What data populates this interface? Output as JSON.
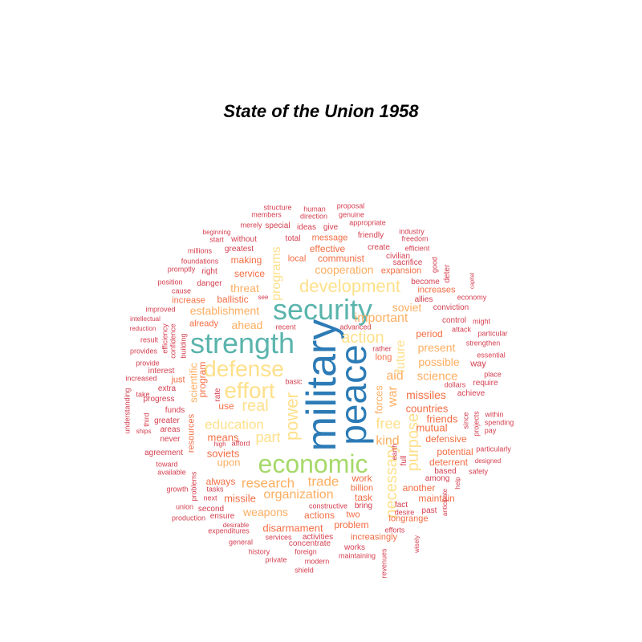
{
  "title": "State of the Union 1958",
  "palette": {
    "teal": "#5ab4ac",
    "blue": "#2c7bb6",
    "lightgreen": "#a6d96a",
    "yellow": "#fee08b",
    "sand": "#fdae61",
    "orange": "#f46d43",
    "red": "#d53e4f"
  },
  "words": [
    {
      "text": "military",
      "color": "blue"
    },
    {
      "text": "peace",
      "color": "blue"
    },
    {
      "text": "security",
      "color": "teal"
    },
    {
      "text": "strength",
      "color": "teal"
    },
    {
      "text": "economic",
      "color": "lightgreen"
    },
    {
      "text": "defense",
      "color": "yellow"
    },
    {
      "text": "effort",
      "color": "yellow"
    },
    {
      "text": "development",
      "color": "yellow"
    },
    {
      "text": "power",
      "color": "yellow"
    },
    {
      "text": "action",
      "color": "yellow"
    },
    {
      "text": "real",
      "color": "yellow"
    },
    {
      "text": "education",
      "color": "yellow"
    },
    {
      "text": "free",
      "color": "yellow"
    },
    {
      "text": "part",
      "color": "yellow"
    },
    {
      "text": "necessary",
      "color": "yellow"
    },
    {
      "text": "programs",
      "color": "yellow"
    },
    {
      "text": "future",
      "color": "yellow"
    },
    {
      "text": "purpose",
      "color": "yellow"
    },
    {
      "text": "war",
      "color": "sand"
    },
    {
      "text": "kind",
      "color": "sand"
    },
    {
      "text": "research",
      "color": "sand"
    },
    {
      "text": "trade",
      "color": "sand"
    },
    {
      "text": "organization",
      "color": "sand"
    },
    {
      "text": "important",
      "color": "sand"
    },
    {
      "text": "aid",
      "color": "sand"
    },
    {
      "text": "science",
      "color": "sand"
    },
    {
      "text": "establishment",
      "color": "sand"
    },
    {
      "text": "threat",
      "color": "sand"
    },
    {
      "text": "ahead",
      "color": "sand"
    },
    {
      "text": "present",
      "color": "sand"
    },
    {
      "text": "possible",
      "color": "sand"
    },
    {
      "text": "soviet",
      "color": "sand"
    },
    {
      "text": "cooperation",
      "color": "sand"
    },
    {
      "text": "weapons",
      "color": "sand"
    },
    {
      "text": "upon",
      "color": "sand"
    },
    {
      "text": "forces",
      "color": "sand"
    },
    {
      "text": "scientific",
      "color": "sand"
    },
    {
      "text": "missiles",
      "color": "orange"
    },
    {
      "text": "countries",
      "color": "orange"
    },
    {
      "text": "mutual",
      "color": "orange"
    },
    {
      "text": "friends",
      "color": "orange"
    },
    {
      "text": "defensive",
      "color": "orange"
    },
    {
      "text": "means",
      "color": "orange"
    },
    {
      "text": "soviets",
      "color": "orange"
    },
    {
      "text": "use",
      "color": "orange"
    },
    {
      "text": "program",
      "color": "orange"
    },
    {
      "text": "missile",
      "color": "orange"
    },
    {
      "text": "disarmament",
      "color": "orange"
    },
    {
      "text": "problem",
      "color": "orange"
    },
    {
      "text": "actions",
      "color": "orange"
    },
    {
      "text": "work",
      "color": "orange"
    },
    {
      "text": "task",
      "color": "orange"
    },
    {
      "text": "billion",
      "color": "orange"
    },
    {
      "text": "always",
      "color": "orange"
    },
    {
      "text": "another",
      "color": "orange"
    },
    {
      "text": "maintain",
      "color": "orange"
    },
    {
      "text": "deterrent",
      "color": "orange"
    },
    {
      "text": "potential",
      "color": "orange"
    },
    {
      "text": "period",
      "color": "orange"
    },
    {
      "text": "ballistic",
      "color": "orange"
    },
    {
      "text": "service",
      "color": "orange"
    },
    {
      "text": "making",
      "color": "orange"
    },
    {
      "text": "communist",
      "color": "orange"
    },
    {
      "text": "effective",
      "color": "orange"
    },
    {
      "text": "local",
      "color": "orange"
    },
    {
      "text": "message",
      "color": "orange"
    },
    {
      "text": "expansion",
      "color": "orange"
    },
    {
      "text": "increases",
      "color": "orange"
    },
    {
      "text": "already",
      "color": "orange"
    },
    {
      "text": "increase",
      "color": "orange"
    },
    {
      "text": "resources",
      "color": "orange"
    },
    {
      "text": "long",
      "color": "orange"
    },
    {
      "text": "two",
      "color": "orange"
    },
    {
      "text": "longrange",
      "color": "orange"
    },
    {
      "text": "increasingly",
      "color": "orange"
    },
    {
      "text": "just",
      "color": "orange"
    },
    {
      "text": "interest",
      "color": "red"
    },
    {
      "text": "extra",
      "color": "red"
    },
    {
      "text": "progress",
      "color": "red"
    },
    {
      "text": "funds",
      "color": "red"
    },
    {
      "text": "greater",
      "color": "red"
    },
    {
      "text": "never",
      "color": "red"
    },
    {
      "text": "second",
      "color": "red"
    },
    {
      "text": "next",
      "color": "red"
    },
    {
      "text": "ensure",
      "color": "red"
    },
    {
      "text": "structure",
      "color": "red"
    },
    {
      "text": "human",
      "color": "red"
    },
    {
      "text": "proposal",
      "color": "red"
    },
    {
      "text": "members",
      "color": "red"
    },
    {
      "text": "direction",
      "color": "red"
    },
    {
      "text": "genuine",
      "color": "red"
    },
    {
      "text": "merely",
      "color": "red"
    },
    {
      "text": "special",
      "color": "red"
    },
    {
      "text": "ideas",
      "color": "red"
    },
    {
      "text": "give",
      "color": "red"
    },
    {
      "text": "appropriate",
      "color": "red"
    },
    {
      "text": "beginning",
      "color": "red"
    },
    {
      "text": "start",
      "color": "red"
    },
    {
      "text": "without",
      "color": "red"
    },
    {
      "text": "total",
      "color": "red"
    },
    {
      "text": "friendly",
      "color": "red"
    },
    {
      "text": "industry",
      "color": "red"
    },
    {
      "text": "freedom",
      "color": "red"
    },
    {
      "text": "millions",
      "color": "red"
    },
    {
      "text": "greatest",
      "color": "red"
    },
    {
      "text": "create",
      "color": "red"
    },
    {
      "text": "civilian",
      "color": "red"
    },
    {
      "text": "efficient",
      "color": "red"
    },
    {
      "text": "foundations",
      "color": "red"
    },
    {
      "text": "sacrifice",
      "color": "red"
    },
    {
      "text": "good",
      "color": "red"
    },
    {
      "text": "promptly",
      "color": "red"
    },
    {
      "text": "right",
      "color": "red"
    },
    {
      "text": "deter",
      "color": "red"
    },
    {
      "text": "capital",
      "color": "red"
    },
    {
      "text": "position",
      "color": "red"
    },
    {
      "text": "danger",
      "color": "red"
    },
    {
      "text": "become",
      "color": "red"
    },
    {
      "text": "cause",
      "color": "red"
    },
    {
      "text": "see",
      "color": "red"
    },
    {
      "text": "economy",
      "color": "red"
    },
    {
      "text": "allies",
      "color": "red"
    },
    {
      "text": "improved",
      "color": "red"
    },
    {
      "text": "conviction",
      "color": "red"
    },
    {
      "text": "intellectual",
      "color": "red"
    },
    {
      "text": "might",
      "color": "red"
    },
    {
      "text": "reduction",
      "color": "red"
    },
    {
      "text": "recent",
      "color": "red"
    },
    {
      "text": "advanced",
      "color": "red"
    },
    {
      "text": "control",
      "color": "red"
    },
    {
      "text": "attack",
      "color": "red"
    },
    {
      "text": "particular",
      "color": "red"
    },
    {
      "text": "result",
      "color": "red"
    },
    {
      "text": "efficiency",
      "color": "red"
    },
    {
      "text": "rather",
      "color": "red"
    },
    {
      "text": "strengthen",
      "color": "red"
    },
    {
      "text": "provides",
      "color": "red"
    },
    {
      "text": "confidence",
      "color": "red"
    },
    {
      "text": "essential",
      "color": "red"
    },
    {
      "text": "building",
      "color": "red"
    },
    {
      "text": "provide",
      "color": "red"
    },
    {
      "text": "way",
      "color": "red"
    },
    {
      "text": "place",
      "color": "red"
    },
    {
      "text": "increased",
      "color": "red"
    },
    {
      "text": "basic",
      "color": "red"
    },
    {
      "text": "dollars",
      "color": "red"
    },
    {
      "text": "require",
      "color": "red"
    },
    {
      "text": "take",
      "color": "red"
    },
    {
      "text": "achieve",
      "color": "red"
    },
    {
      "text": "understanding",
      "color": "red"
    },
    {
      "text": "rate",
      "color": "red"
    },
    {
      "text": "third",
      "color": "red"
    },
    {
      "text": "since",
      "color": "red"
    },
    {
      "text": "within",
      "color": "red"
    },
    {
      "text": "ships",
      "color": "red"
    },
    {
      "text": "projects",
      "color": "red"
    },
    {
      "text": "spending",
      "color": "red"
    },
    {
      "text": "areas",
      "color": "red"
    },
    {
      "text": "pay",
      "color": "red"
    },
    {
      "text": "high",
      "color": "red"
    },
    {
      "text": "afford",
      "color": "red"
    },
    {
      "text": "agreement",
      "color": "red"
    },
    {
      "text": "earth",
      "color": "red"
    },
    {
      "text": "full",
      "color": "red"
    },
    {
      "text": "particularly",
      "color": "red"
    },
    {
      "text": "toward",
      "color": "red"
    },
    {
      "text": "designed",
      "color": "red"
    },
    {
      "text": "available",
      "color": "red"
    },
    {
      "text": "safety",
      "color": "red"
    },
    {
      "text": "based",
      "color": "red"
    },
    {
      "text": "among",
      "color": "red"
    },
    {
      "text": "problems",
      "color": "red"
    },
    {
      "text": "help",
      "color": "red"
    },
    {
      "text": "growth",
      "color": "red"
    },
    {
      "text": "tasks",
      "color": "red"
    },
    {
      "text": "fact",
      "color": "red"
    },
    {
      "text": "union",
      "color": "red"
    },
    {
      "text": "constructive",
      "color": "red"
    },
    {
      "text": "bring",
      "color": "red"
    },
    {
      "text": "past",
      "color": "red"
    },
    {
      "text": "desire",
      "color": "red"
    },
    {
      "text": "anticipate",
      "color": "red"
    },
    {
      "text": "production",
      "color": "red"
    },
    {
      "text": "desirable",
      "color": "red"
    },
    {
      "text": "expenditures",
      "color": "red"
    },
    {
      "text": "efforts",
      "color": "red"
    },
    {
      "text": "services",
      "color": "red"
    },
    {
      "text": "activities",
      "color": "red"
    },
    {
      "text": "general",
      "color": "red"
    },
    {
      "text": "concentrate",
      "color": "red"
    },
    {
      "text": "wisely",
      "color": "red"
    },
    {
      "text": "history",
      "color": "red"
    },
    {
      "text": "foreign",
      "color": "red"
    },
    {
      "text": "works",
      "color": "red"
    },
    {
      "text": "maintaining",
      "color": "red"
    },
    {
      "text": "private",
      "color": "red"
    },
    {
      "text": "modern",
      "color": "red"
    },
    {
      "text": "revenues",
      "color": "red"
    },
    {
      "text": "shield",
      "color": "red"
    }
  ]
}
